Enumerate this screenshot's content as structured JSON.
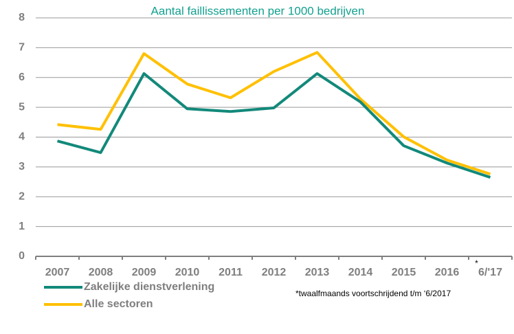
{
  "chart_data": {
    "type": "line",
    "title": "Aantal faillissementen per 1000 bedrijven",
    "categories": [
      "2007",
      "2008",
      "2009",
      "2010",
      "2011",
      "2012",
      "2013",
      "2014",
      "2015",
      "2016",
      "6/'17"
    ],
    "category_marker": "*",
    "series": [
      {
        "name": "Zakelijke dienstverlening",
        "color": "#12897a",
        "values": [
          3.87,
          3.48,
          6.13,
          4.95,
          4.86,
          4.98,
          6.13,
          5.18,
          3.71,
          3.13,
          2.65
        ]
      },
      {
        "name": "Alle sectoren",
        "color": "#ffc000",
        "values": [
          4.42,
          4.26,
          6.8,
          5.78,
          5.32,
          6.2,
          6.84,
          5.28,
          4.01,
          3.23,
          2.76
        ]
      }
    ],
    "ylim": [
      0,
      8
    ],
    "yticks": [
      0,
      1,
      2,
      3,
      4,
      5,
      6,
      7,
      8
    ],
    "grid": true,
    "footnote": "*twaalfmaands voortschrijdend t/m ‘6/2017"
  }
}
